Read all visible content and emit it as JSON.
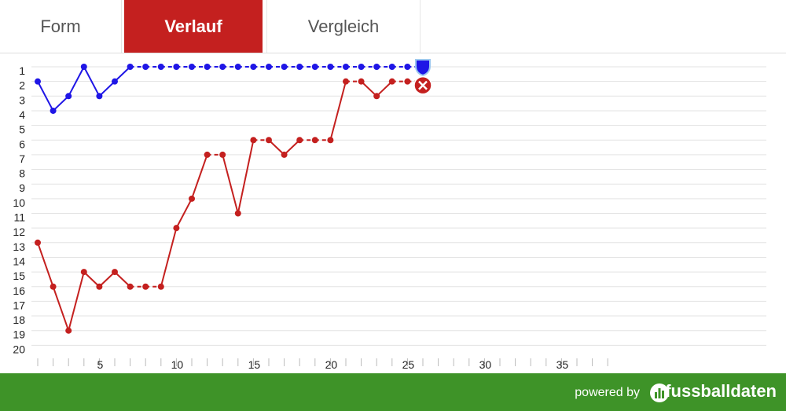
{
  "tabs": [
    {
      "label": "Form"
    },
    {
      "label": "Verlauf"
    },
    {
      "label": "Vergleich"
    }
  ],
  "footer": {
    "powered_label": "powered by",
    "brand_label": "fussballdaten",
    "brand_icon": "bar-chart-icon"
  },
  "colors": {
    "accent": "#c4201f",
    "team_a": "#1f16e6",
    "team_b": "#c4201f",
    "footer": "#3e9328"
  },
  "chart_data": {
    "type": "line",
    "x": [
      1,
      2,
      3,
      4,
      5,
      6,
      7,
      8,
      9,
      10,
      11,
      12,
      13,
      14,
      15,
      16,
      17,
      18,
      19,
      20,
      21,
      22,
      23,
      24,
      25,
      26
    ],
    "xlim": [
      1,
      38
    ],
    "ylim": [
      1,
      20
    ],
    "y_inverted": true,
    "x_tick_labels": [
      5,
      10,
      15,
      20,
      25,
      30,
      35
    ],
    "y_tick_labels": [
      1,
      2,
      3,
      4,
      5,
      6,
      7,
      8,
      9,
      10,
      11,
      12,
      13,
      14,
      15,
      16,
      17,
      18,
      19,
      20
    ],
    "grid": true,
    "series": [
      {
        "color": "#1f16e6",
        "values": [
          2,
          4,
          3,
          1,
          3,
          2,
          1,
          1,
          1,
          1,
          1,
          1,
          1,
          1,
          1,
          1,
          1,
          1,
          1,
          1,
          1,
          1,
          1,
          1,
          1,
          1
        ]
      },
      {
        "color": "#c4201f",
        "values": [
          13,
          16,
          19,
          15,
          16,
          15,
          16,
          16,
          16,
          12,
          10,
          7,
          7,
          11,
          6,
          6,
          7,
          6,
          6,
          6,
          2,
          2,
          3,
          2,
          2,
          2
        ]
      }
    ]
  }
}
